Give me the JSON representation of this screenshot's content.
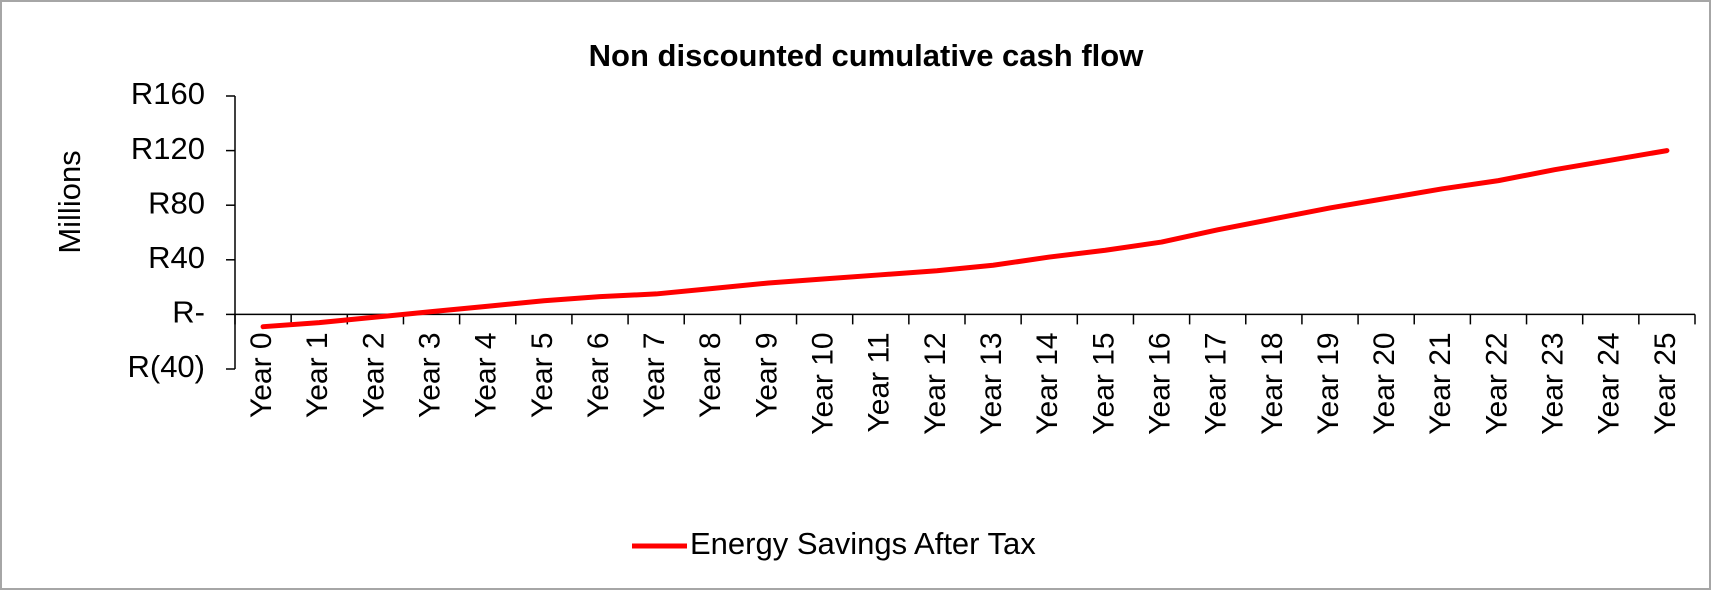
{
  "chart_data": {
    "type": "line",
    "title": "Non discounted cumulative cash flow",
    "y_label": "Millions",
    "categories": [
      "Year 0",
      "Year 1",
      "Year 2",
      "Year 3",
      "Year 4",
      "Year 5",
      "Year 6",
      "Year 7",
      "Year 8",
      "Year 9",
      "Year 10",
      "Year 11",
      "Year 12",
      "Year 13",
      "Year 14",
      "Year 15",
      "Year 16",
      "Year 17",
      "Year 18",
      "Year 19",
      "Year 20",
      "Year 21",
      "Year 22",
      "Year 23",
      "Year 24",
      "Year 25"
    ],
    "series": [
      {
        "name": "Energy Savings After Tax",
        "color": "#ff0000",
        "values": [
          -9,
          -6,
          -2,
          2,
          6,
          10,
          13,
          15,
          19,
          23,
          26,
          29,
          32,
          36,
          42,
          47,
          53,
          62,
          70,
          78,
          85,
          92,
          98,
          106,
          113,
          120
        ]
      }
    ],
    "ylim": [
      -40,
      160
    ],
    "yticks": [
      {
        "value": -40,
        "label": "R(40)"
      },
      {
        "value": 0,
        "label": "R-"
      },
      {
        "value": 40,
        "label": "R40"
      },
      {
        "value": 80,
        "label": "R80"
      },
      {
        "value": 120,
        "label": "R120"
      },
      {
        "value": 160,
        "label": "R160"
      }
    ],
    "grid": false,
    "legend": "bottom"
  }
}
